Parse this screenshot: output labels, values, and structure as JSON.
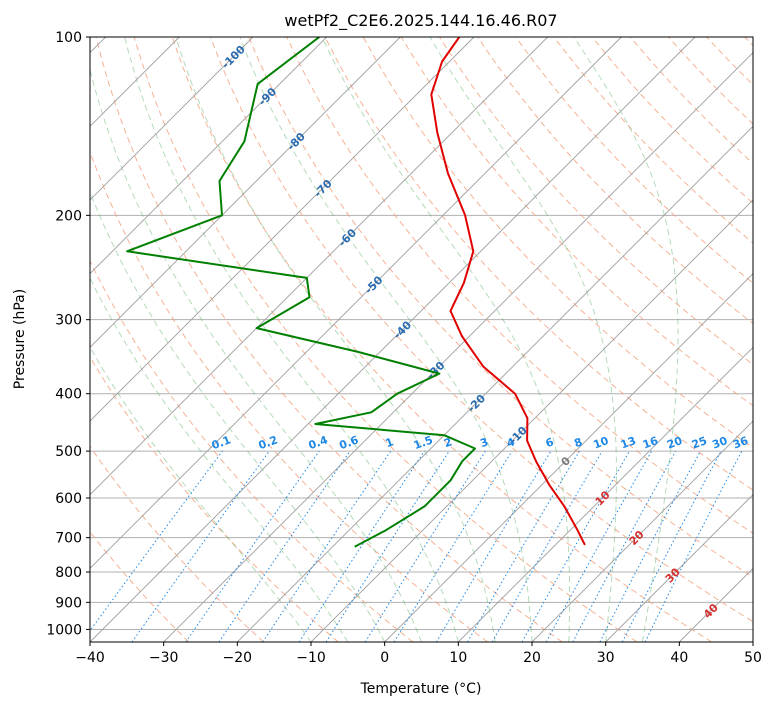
{
  "chart_data": {
    "type": "line",
    "title": "wetPf2_C2E6.2025.144.16.46.R07",
    "xlabel": "Temperature (°C)",
    "ylabel": "Pressure (hPa)",
    "xlim": [
      -40,
      50
    ],
    "ylim": [
      1050,
      100
    ],
    "y_scale": "log",
    "grid": true,
    "x_ticks": [
      "−40",
      "−30",
      "−20",
      "−10",
      "0",
      "10",
      "20",
      "30",
      "40",
      "50"
    ],
    "y_ticks": [
      "100",
      "200",
      "300",
      "400",
      "500",
      "600",
      "700",
      "800",
      "900",
      "1000"
    ],
    "skew_isotherm_labels": [
      "-100",
      "-90",
      "-80",
      "-70",
      "-60",
      "-50",
      "-40",
      "-30",
      "-20",
      "-10",
      "0",
      "10",
      "20",
      "30",
      "40"
    ],
    "mixing_ratio_labels": [
      "0.1",
      "0.2",
      "0.4",
      "0.6",
      "1",
      "1.5",
      "2",
      "3",
      "4",
      "6",
      "8",
      "10",
      "13",
      "16",
      "20",
      "25",
      "30",
      "36"
    ],
    "series": [
      {
        "role": "temperature",
        "color": "#e00000",
        "points": [
          {
            "p": 100,
            "t": -72
          },
          {
            "p": 110,
            "t": -71
          },
          {
            "p": 125,
            "t": -68
          },
          {
            "p": 145,
            "t": -62
          },
          {
            "p": 170,
            "t": -55
          },
          {
            "p": 200,
            "t": -47
          },
          {
            "p": 230,
            "t": -41
          },
          {
            "p": 260,
            "t": -38
          },
          {
            "p": 290,
            "t": -36
          },
          {
            "p": 320,
            "t": -31
          },
          {
            "p": 360,
            "t": -24
          },
          {
            "p": 400,
            "t": -16
          },
          {
            "p": 440,
            "t": -11
          },
          {
            "p": 480,
            "t": -8
          },
          {
            "p": 520,
            "t": -4
          },
          {
            "p": 570,
            "t": 1
          },
          {
            "p": 620,
            "t": 6
          },
          {
            "p": 680,
            "t": 11
          },
          {
            "p": 720,
            "t": 14
          }
        ]
      },
      {
        "role": "dewpoint",
        "color": "#008000",
        "points": [
          {
            "p": 100,
            "t": -91
          },
          {
            "p": 120,
            "t": -93
          },
          {
            "p": 150,
            "t": -87
          },
          {
            "p": 175,
            "t": -85
          },
          {
            "p": 200,
            "t": -80
          },
          {
            "p": 230,
            "t": -88
          },
          {
            "p": 255,
            "t": -60
          },
          {
            "p": 275,
            "t": -57
          },
          {
            "p": 310,
            "t": -60
          },
          {
            "p": 340,
            "t": -43
          },
          {
            "p": 370,
            "t": -29
          },
          {
            "p": 400,
            "t": -32
          },
          {
            "p": 430,
            "t": -33
          },
          {
            "p": 450,
            "t": -39
          },
          {
            "p": 470,
            "t": -20
          },
          {
            "p": 495,
            "t": -14
          },
          {
            "p": 520,
            "t": -14
          },
          {
            "p": 560,
            "t": -13
          },
          {
            "p": 620,
            "t": -13
          },
          {
            "p": 680,
            "t": -15
          },
          {
            "p": 725,
            "t": -17
          }
        ]
      }
    ]
  }
}
